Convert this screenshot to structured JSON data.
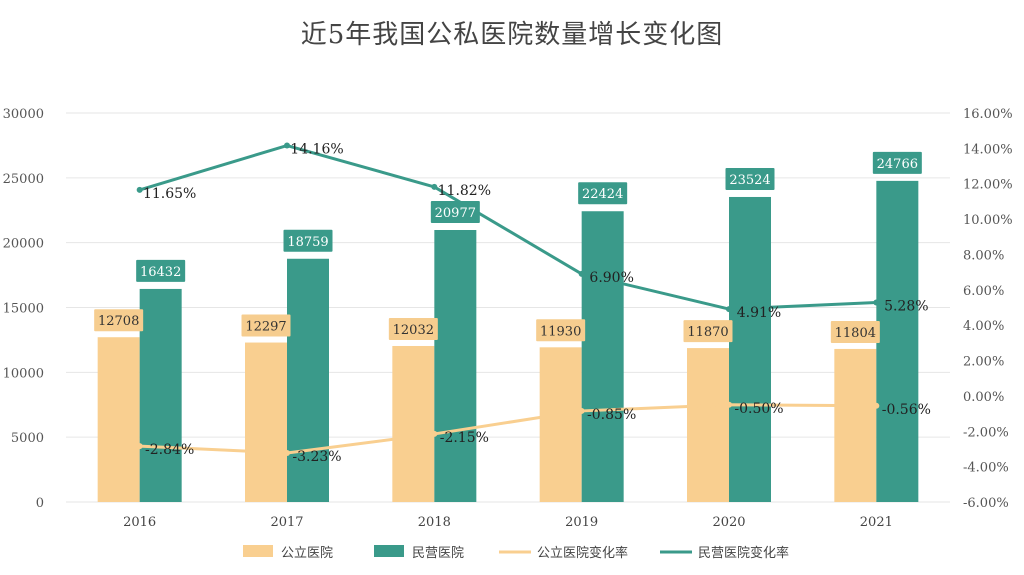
{
  "chart_data": {
    "type": "bar",
    "title": "近5年我国公私医院数量增长变化图",
    "categories": [
      "2016",
      "2017",
      "2018",
      "2019",
      "2020",
      "2021"
    ],
    "y_left": {
      "ticks": [
        "30000",
        "25000",
        "20000",
        "15000",
        "10000",
        "5000",
        "0"
      ],
      "ylim": [
        0,
        30000
      ]
    },
    "y_right": {
      "ticks": [
        "16.00%",
        "14.00%",
        "12.00%",
        "10.00%",
        "8.00%",
        "6.00%",
        "4.00%",
        "2.00%",
        "0.00%",
        "-2.00%",
        "-4.00%",
        "-6.00%"
      ],
      "ylim": [
        -6,
        16
      ]
    },
    "series": [
      {
        "name": "公立医院",
        "kind": "bar",
        "axis": "left",
        "color": "#f9cf90",
        "values": [
          12708,
          12297,
          12032,
          11930,
          11870,
          11804
        ],
        "labels": [
          "12708",
          "12297",
          "12032",
          "11930",
          "11870",
          "11804"
        ]
      },
      {
        "name": "民营医院",
        "kind": "bar",
        "axis": "left",
        "color": "#3a9a8a",
        "values": [
          16432,
          18759,
          20977,
          22424,
          23524,
          24766
        ],
        "labels": [
          "16432",
          "18759",
          "20977",
          "22424",
          "23524",
          "24766"
        ]
      },
      {
        "name": "公立医院变化率",
        "kind": "line",
        "axis": "right",
        "color": "#f9cf90",
        "values": [
          -2.84,
          -3.23,
          -2.15,
          -0.85,
          -0.5,
          -0.56
        ],
        "labels": [
          "-2.84%",
          "-3.23%",
          "-2.15%",
          "-0.85%",
          "-0.50%",
          "-0.56%"
        ]
      },
      {
        "name": "民营医院变化率",
        "kind": "line",
        "axis": "right",
        "color": "#3a9a8a",
        "values": [
          11.65,
          14.16,
          11.82,
          6.9,
          4.91,
          5.28
        ],
        "labels": [
          "11.65%",
          "14.16%",
          "11.82%",
          "6.90%",
          "4.91%",
          "5.28%"
        ]
      }
    ],
    "legend": {
      "position": "bottom"
    },
    "grid": true
  }
}
